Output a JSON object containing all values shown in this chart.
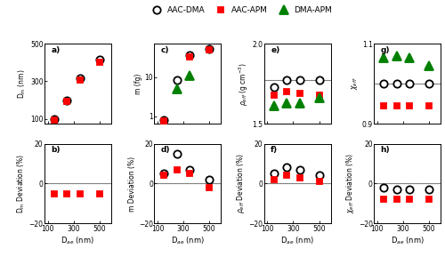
{
  "dae": [
    150,
    250,
    350,
    500
  ],
  "panel_a": {
    "label": "a)",
    "ylabel": "D$_m$ (nm)",
    "ylim": [
      75,
      500
    ],
    "yticks": [
      100,
      300,
      500
    ],
    "aac_dma": [
      100,
      200,
      315,
      415
    ],
    "aac_apm": [
      93,
      195,
      308,
      400
    ],
    "dma_apm": [
      null,
      null,
      null,
      null
    ]
  },
  "panel_b": {
    "label": "b)",
    "ylabel": "D$_m$ Deviation (%)",
    "ylim": [
      -20,
      20
    ],
    "yticks": [
      -20,
      0,
      20
    ],
    "aac_dma": [
      null,
      null,
      null,
      null
    ],
    "aac_apm": [
      -5,
      -5,
      -5,
      -5
    ],
    "dma_apm": [
      null,
      null,
      null,
      null
    ]
  },
  "panel_c": {
    "label": "c)",
    "ylabel": "m (fg)",
    "ylim_log": [
      0.65,
      70
    ],
    "aac_dma": [
      0.82,
      8.5,
      35,
      52
    ],
    "aac_apm": [
      0.78,
      null,
      32,
      50
    ],
    "dma_apm": [
      null,
      5.0,
      11,
      null
    ]
  },
  "panel_d": {
    "label": "d)",
    "ylabel": "m Deviation (%)",
    "ylim": [
      -20,
      20
    ],
    "yticks": [
      -20,
      0,
      20
    ],
    "aac_dma": [
      5,
      15,
      7,
      2
    ],
    "aac_apm": [
      4,
      7,
      5,
      -2
    ],
    "dma_apm": [
      null,
      null,
      null,
      null
    ]
  },
  "panel_e": {
    "label": "e)",
    "ylabel": "$\\rho_{eff}$ (g cm$^{-3}$)",
    "ylim": [
      1.5,
      2.0
    ],
    "yticks": [
      1.5,
      2.0
    ],
    "ref_line": 1.77,
    "aac_dma": [
      1.73,
      1.77,
      1.77,
      1.77
    ],
    "aac_apm": [
      1.68,
      1.7,
      1.69,
      1.68
    ],
    "dma_apm": [
      1.61,
      1.63,
      1.63,
      1.66
    ]
  },
  "panel_f": {
    "label": "f)",
    "ylabel": "$\\rho_{eff}$ Deviation (%)",
    "ylim": [
      -20,
      20
    ],
    "yticks": [
      -20,
      0,
      20
    ],
    "aac_dma": [
      5,
      8,
      7,
      4
    ],
    "aac_apm": [
      2,
      4,
      3,
      1
    ],
    "dma_apm": [
      null,
      null,
      null,
      null
    ]
  },
  "panel_g": {
    "label": "g)",
    "ylabel": "$\\chi_{eff}$",
    "ylim": [
      0.9,
      1.1
    ],
    "yticks": [
      0.9,
      1.1
    ],
    "ref_line": 1.0,
    "aac_dma": [
      1.0,
      1.0,
      1.0,
      1.0
    ],
    "aac_apm": [
      0.945,
      0.945,
      0.945,
      0.945
    ],
    "dma_apm": [
      1.065,
      1.07,
      1.065,
      1.045
    ]
  },
  "panel_h": {
    "label": "h)",
    "ylabel": "$\\chi_{eff}$ Deviation (%)",
    "ylim": [
      -20,
      20
    ],
    "yticks": [
      -20,
      0,
      20
    ],
    "aac_dma": [
      -2,
      -3,
      -3,
      -3
    ],
    "aac_apm": [
      -8,
      -8,
      -8,
      -8
    ],
    "dma_apm": [
      null,
      null,
      null,
      null
    ]
  },
  "xlabel": "D$_{ae}$ (nm)",
  "xlim": [
    75,
    590
  ],
  "xticks": [
    100,
    300,
    500
  ],
  "marker_size_circle": 6,
  "marker_size_square": 5,
  "marker_size_triangle": 7
}
